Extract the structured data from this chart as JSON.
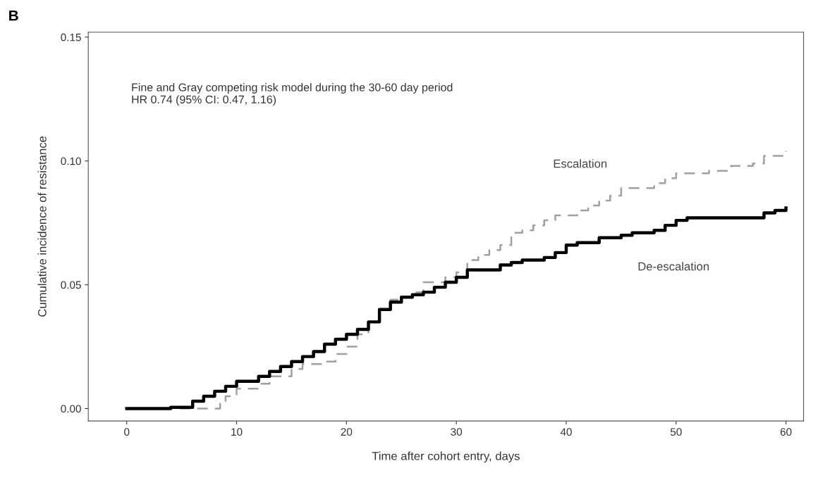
{
  "chart_data": {
    "type": "step",
    "xlabel": "Time after cohort entry, days",
    "ylabel": "Cumulative incidence of resistance",
    "annotations": [
      "B",
      "Fine and Gray competing risk model during the 30-60 day period\nHR 0.74 (95% CI: 0.47, 1.16)"
    ],
    "xlim": [
      -3.5,
      61.6
    ],
    "ylim": [
      -0.005,
      0.152
    ],
    "xticks": [
      0,
      10,
      20,
      30,
      40,
      50,
      60
    ],
    "yticks": [
      {
        "value": 0,
        "label": "0.00"
      },
      {
        "value": 0.05,
        "label": "0.05"
      },
      {
        "value": 0.1,
        "label": "0.10"
      },
      {
        "value": 0.15,
        "label": "0.15"
      }
    ],
    "grid": false,
    "legend": false,
    "series": [
      {
        "name": "Escalation",
        "color": "#a0a0a0",
        "line_style": "dashed",
        "x": [
          0,
          8,
          8.5,
          9,
          10,
          12,
          13,
          15,
          16,
          18,
          19,
          20,
          21,
          22,
          23,
          24,
          25,
          26,
          27,
          29,
          30,
          31,
          32,
          33,
          34,
          35,
          36,
          37,
          38,
          39,
          41,
          42,
          43,
          44,
          45,
          48,
          49,
          50,
          53,
          55,
          57,
          58,
          60
        ],
        "values": [
          0,
          0,
          0.002,
          0.005,
          0.008,
          0.01,
          0.013,
          0.016,
          0.018,
          0.019,
          0.022,
          0.025,
          0.03,
          0.035,
          0.04,
          0.044,
          0.045,
          0.047,
          0.051,
          0.053,
          0.055,
          0.06,
          0.062,
          0.064,
          0.066,
          0.071,
          0.072,
          0.074,
          0.076,
          0.078,
          0.08,
          0.082,
          0.084,
          0.086,
          0.089,
          0.091,
          0.093,
          0.095,
          0.096,
          0.098,
          0.099,
          0.102,
          0.104
        ]
      },
      {
        "name": "De-escalation",
        "color": "#000000",
        "line_style": "solid",
        "x": [
          0,
          4,
          6,
          7,
          8,
          9,
          10,
          12,
          13,
          14,
          15,
          16,
          17,
          18,
          19,
          20,
          21,
          22,
          23,
          24,
          25,
          26,
          27,
          28,
          29,
          30,
          31,
          33,
          34,
          35,
          36,
          38,
          39,
          40,
          41,
          43,
          45,
          46,
          48,
          49,
          50,
          51,
          57,
          58,
          59,
          60
        ],
        "values": [
          0,
          0.0005,
          0.003,
          0.005,
          0.007,
          0.009,
          0.011,
          0.013,
          0.015,
          0.017,
          0.019,
          0.021,
          0.023,
          0.026,
          0.028,
          0.03,
          0.032,
          0.035,
          0.04,
          0.043,
          0.045,
          0.046,
          0.047,
          0.049,
          0.051,
          0.053,
          0.056,
          0.056,
          0.058,
          0.059,
          0.06,
          0.061,
          0.063,
          0.066,
          0.067,
          0.069,
          0.07,
          0.071,
          0.072,
          0.074,
          0.076,
          0.077,
          0.077,
          0.079,
          0.08,
          0.081
        ]
      }
    ]
  }
}
